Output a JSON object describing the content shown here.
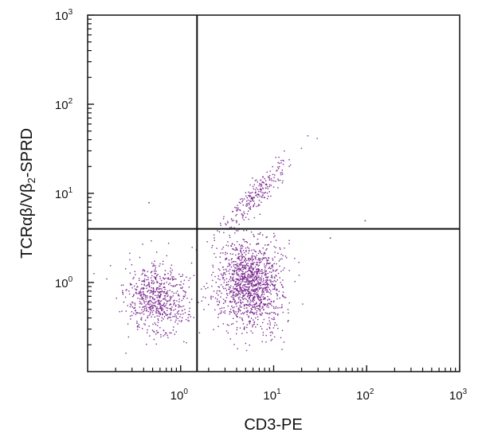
{
  "chart_data": {
    "type": "scatter",
    "xlabel": "CD3-PE",
    "ylabel": {
      "parts": [
        {
          "t": "TCRαβ/Vβ",
          "sub": false
        },
        {
          "t": "2",
          "sub": true
        },
        {
          "t": "-SPRD",
          "sub": false
        }
      ]
    },
    "xscale": "log",
    "yscale": "log",
    "xlim": [
      0.1,
      1000
    ],
    "ylim": [
      0.1,
      1000
    ],
    "xticks": [
      {
        "base": "10",
        "exp": "0",
        "value": 1
      },
      {
        "base": "10",
        "exp": "1",
        "value": 10
      },
      {
        "base": "10",
        "exp": "2",
        "value": 100
      },
      {
        "base": "10",
        "exp": "3",
        "value": 1000
      }
    ],
    "yticks": [
      {
        "base": "10",
        "exp": "0",
        "value": 1
      },
      {
        "base": "10",
        "exp": "1",
        "value": 10
      },
      {
        "base": "10",
        "exp": "2",
        "value": 100
      },
      {
        "base": "10",
        "exp": "3",
        "value": 1000
      }
    ],
    "quadrant_gates": {
      "x": 1.5,
      "y": 4
    },
    "point_color": "#7b2a90",
    "populations": [
      {
        "center_x": 0.55,
        "center_y": 0.65,
        "spread_log_x": 0.17,
        "spread_log_y": 0.2,
        "count": 650
      },
      {
        "center_x": 5.5,
        "center_y": 1.0,
        "spread_log_x": 0.17,
        "spread_log_y": 0.26,
        "count": 1300
      },
      {
        "center_x": 6.5,
        "center_y": 10,
        "spread_log_x": 0.18,
        "spread_log_y": 0.2,
        "count": 230
      }
    ],
    "outliers": [
      {
        "x": 0.45,
        "y": 8
      },
      {
        "x": 95,
        "y": 5
      },
      {
        "x": 40,
        "y": 3.2
      }
    ]
  }
}
